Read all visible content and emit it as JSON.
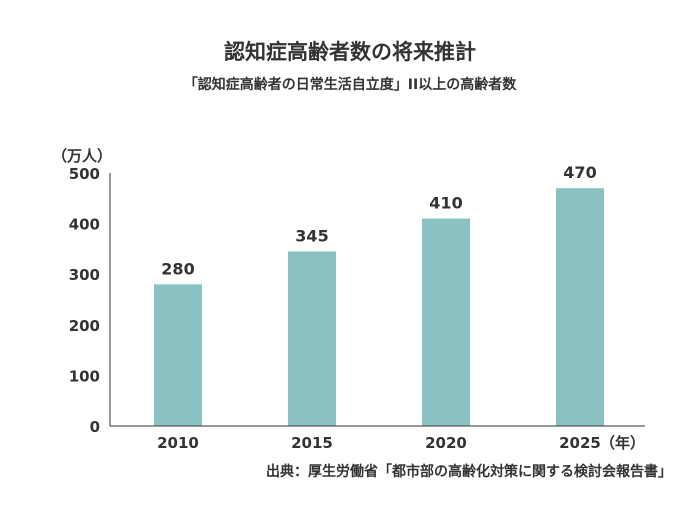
{
  "chart_data": {
    "type": "bar",
    "title": "認知症高齢者数の将来推計",
    "subtitle": "「認知症高齢者の日常生活自立度」II以上の高齢者数",
    "ylabel": "（万人）",
    "xlabel_suffix": "（年）",
    "categories": [
      "2010",
      "2015",
      "2020",
      "2025"
    ],
    "values": [
      280,
      345,
      410,
      470
    ],
    "ylim": [
      0,
      500
    ],
    "yticks": [
      0,
      100,
      200,
      300,
      400,
      500
    ],
    "grid": false,
    "legend": "none",
    "bar_color": "#89c2c0"
  },
  "source": "出典：厚生労働省「都市部の高齢化対策に関する検討会報告書」"
}
